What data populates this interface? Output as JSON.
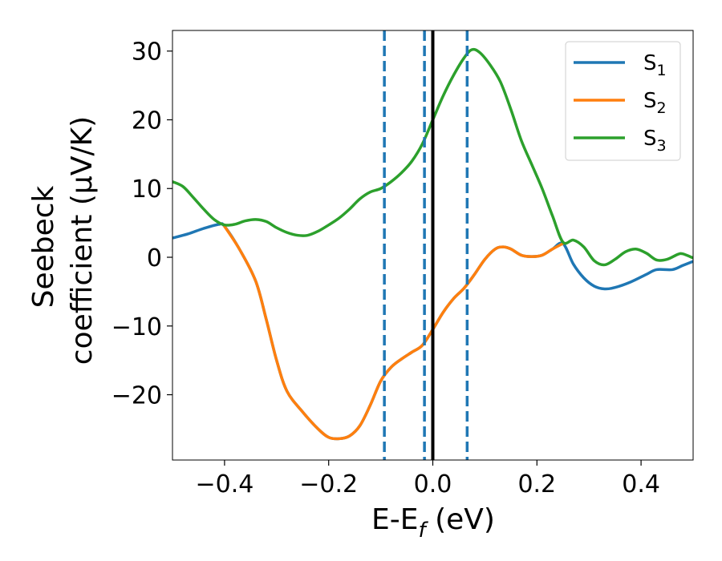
{
  "chart_data": {
    "type": "line",
    "title": "",
    "xlabel": "E-E",
    "xlabel_sub": "f",
    "xlabel_unit": " (eV)",
    "ylabel_line1": "Seebeck",
    "ylabel_line2": "coefficient  (μV/K)",
    "xlim": [
      -0.5,
      0.5
    ],
    "ylim": [
      -29.5,
      33
    ],
    "xticks": [
      -0.4,
      -0.2,
      0.0,
      0.2,
      0.4
    ],
    "xtick_labels": [
      "−0.4",
      "−0.2",
      "0.0",
      "0.2",
      "0.4"
    ],
    "yticks": [
      -20,
      -10,
      0,
      10,
      20,
      30
    ],
    "ytick_labels": [
      "−20",
      "−10",
      "0",
      "10",
      "20",
      "30"
    ],
    "grid": false,
    "legend_position": "top-right",
    "vlines": [
      {
        "x": -0.093,
        "style": "dashed",
        "color": "#1f77b4"
      },
      {
        "x": -0.016,
        "style": "dashed",
        "color": "#1f77b4"
      },
      {
        "x": 0.066,
        "style": "dashed",
        "color": "#1f77b4"
      },
      {
        "x": 0.0,
        "style": "solid",
        "color": "#000000"
      }
    ],
    "series": [
      {
        "name": "S",
        "sub": "1",
        "color": "#1f77b4",
        "points": [
          [
            -0.5,
            2.8
          ],
          [
            -0.47,
            3.4
          ],
          [
            -0.44,
            4.2
          ],
          [
            -0.41,
            4.8
          ],
          [
            -0.4,
            4.5
          ],
          [
            -0.37,
            1.0
          ],
          [
            -0.34,
            -3.5
          ],
          [
            -0.32,
            -9.0
          ],
          [
            -0.3,
            -15.0
          ],
          [
            -0.28,
            -19.5
          ],
          [
            -0.25,
            -22.5
          ],
          [
            -0.22,
            -25.0
          ],
          [
            -0.2,
            -26.2
          ],
          [
            -0.18,
            -26.4
          ],
          [
            -0.16,
            -26.0
          ],
          [
            -0.14,
            -24.5
          ],
          [
            -0.12,
            -21.5
          ],
          [
            -0.1,
            -18.0
          ],
          [
            -0.08,
            -16.0
          ],
          [
            -0.06,
            -14.8
          ],
          [
            -0.04,
            -13.8
          ],
          [
            -0.02,
            -12.8
          ],
          [
            0.0,
            -10.5
          ],
          [
            0.02,
            -8.0
          ],
          [
            0.04,
            -6.0
          ],
          [
            0.06,
            -4.5
          ],
          [
            0.08,
            -2.5
          ],
          [
            0.1,
            -0.3
          ],
          [
            0.12,
            1.2
          ],
          [
            0.135,
            1.5
          ],
          [
            0.15,
            1.2
          ],
          [
            0.17,
            0.3
          ],
          [
            0.19,
            0.1
          ],
          [
            0.21,
            0.3
          ],
          [
            0.23,
            1.2
          ],
          [
            0.25,
            2.0
          ],
          [
            0.27,
            -1.0
          ],
          [
            0.29,
            -3.0
          ],
          [
            0.31,
            -4.2
          ],
          [
            0.33,
            -4.6
          ],
          [
            0.35,
            -4.4
          ],
          [
            0.38,
            -3.6
          ],
          [
            0.41,
            -2.5
          ],
          [
            0.43,
            -1.8
          ],
          [
            0.46,
            -1.8
          ],
          [
            0.48,
            -1.2
          ],
          [
            0.5,
            -0.6
          ]
        ]
      },
      {
        "name": "S",
        "sub": "2",
        "color": "#ff7f0e",
        "points": [
          [
            -0.4,
            4.5
          ],
          [
            -0.37,
            1.0
          ],
          [
            -0.34,
            -3.5
          ],
          [
            -0.32,
            -9.0
          ],
          [
            -0.3,
            -15.0
          ],
          [
            -0.28,
            -19.5
          ],
          [
            -0.25,
            -22.5
          ],
          [
            -0.22,
            -25.0
          ],
          [
            -0.2,
            -26.2
          ],
          [
            -0.18,
            -26.4
          ],
          [
            -0.16,
            -26.0
          ],
          [
            -0.14,
            -24.5
          ],
          [
            -0.12,
            -21.5
          ],
          [
            -0.1,
            -18.0
          ],
          [
            -0.08,
            -16.0
          ],
          [
            -0.06,
            -14.8
          ],
          [
            -0.04,
            -13.8
          ],
          [
            -0.02,
            -12.8
          ],
          [
            0.0,
            -10.5
          ],
          [
            0.02,
            -8.0
          ],
          [
            0.04,
            -6.0
          ],
          [
            0.06,
            -4.5
          ],
          [
            0.08,
            -2.5
          ],
          [
            0.1,
            -0.3
          ],
          [
            0.12,
            1.2
          ],
          [
            0.135,
            1.5
          ],
          [
            0.15,
            1.2
          ],
          [
            0.17,
            0.3
          ],
          [
            0.19,
            0.1
          ],
          [
            0.21,
            0.3
          ],
          [
            0.23,
            1.2
          ],
          [
            0.25,
            2.0
          ]
        ]
      },
      {
        "name": "S",
        "sub": "3",
        "color": "#2ca02c",
        "points": [
          [
            -0.5,
            11.0
          ],
          [
            -0.48,
            10.3
          ],
          [
            -0.46,
            8.7
          ],
          [
            -0.44,
            7.0
          ],
          [
            -0.42,
            5.5
          ],
          [
            -0.4,
            4.7
          ],
          [
            -0.38,
            4.8
          ],
          [
            -0.36,
            5.3
          ],
          [
            -0.34,
            5.5
          ],
          [
            -0.32,
            5.2
          ],
          [
            -0.3,
            4.3
          ],
          [
            -0.28,
            3.6
          ],
          [
            -0.26,
            3.2
          ],
          [
            -0.24,
            3.2
          ],
          [
            -0.22,
            3.8
          ],
          [
            -0.2,
            4.7
          ],
          [
            -0.18,
            5.7
          ],
          [
            -0.16,
            7.0
          ],
          [
            -0.14,
            8.5
          ],
          [
            -0.12,
            9.5
          ],
          [
            -0.1,
            10.0
          ],
          [
            -0.08,
            11.0
          ],
          [
            -0.06,
            12.3
          ],
          [
            -0.04,
            14.0
          ],
          [
            -0.02,
            16.5
          ],
          [
            0.0,
            20.0
          ],
          [
            0.02,
            23.5
          ],
          [
            0.04,
            26.5
          ],
          [
            0.06,
            29.0
          ],
          [
            0.075,
            30.2
          ],
          [
            0.09,
            29.8
          ],
          [
            0.11,
            28.0
          ],
          [
            0.13,
            25.5
          ],
          [
            0.15,
            21.5
          ],
          [
            0.17,
            17.0
          ],
          [
            0.19,
            13.5
          ],
          [
            0.21,
            10.0
          ],
          [
            0.23,
            6.0
          ],
          [
            0.25,
            2.2
          ],
          [
            0.27,
            2.5
          ],
          [
            0.29,
            1.5
          ],
          [
            0.31,
            -0.5
          ],
          [
            0.33,
            -1.1
          ],
          [
            0.35,
            -0.3
          ],
          [
            0.37,
            0.8
          ],
          [
            0.39,
            1.2
          ],
          [
            0.41,
            0.6
          ],
          [
            0.43,
            -0.4
          ],
          [
            0.45,
            -0.3
          ],
          [
            0.47,
            0.4
          ],
          [
            0.48,
            0.5
          ],
          [
            0.5,
            -0.1
          ]
        ]
      }
    ]
  }
}
